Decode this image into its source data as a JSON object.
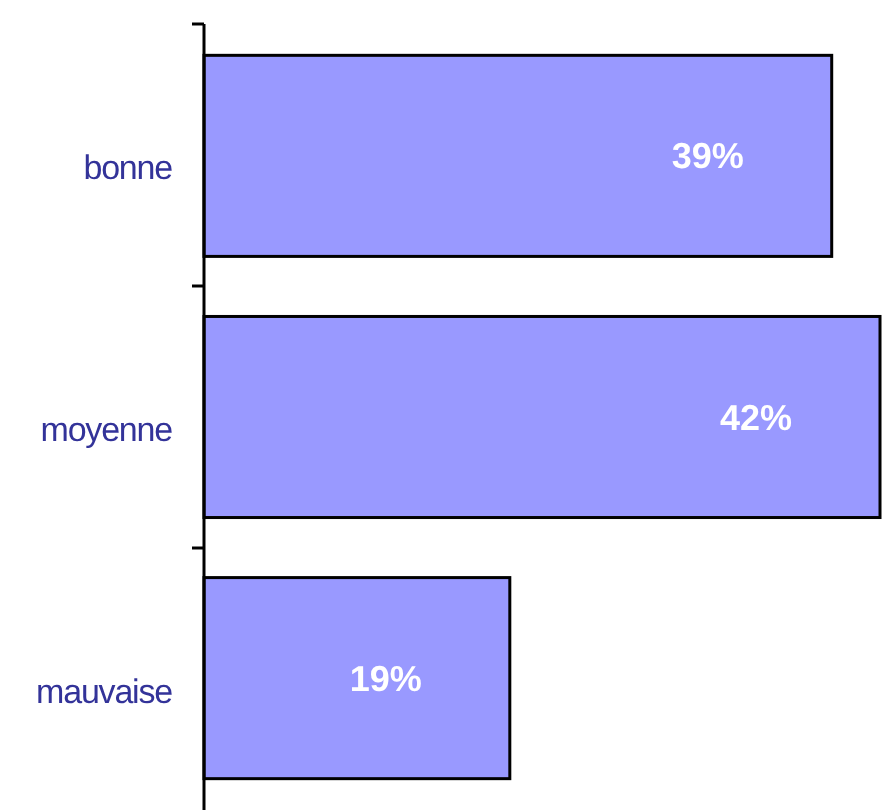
{
  "chart_data": {
    "type": "bar",
    "orientation": "horizontal",
    "categories": [
      "bonne",
      "moyenne",
      "mauvaise"
    ],
    "values": [
      39,
      42,
      19
    ],
    "color": "#9999ff",
    "value_labels": [
      "39%",
      "42%",
      "19%"
    ]
  }
}
